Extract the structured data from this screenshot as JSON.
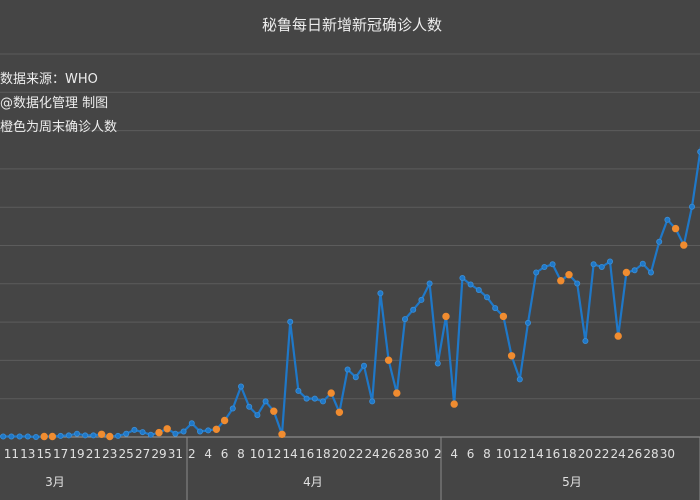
{
  "chart_data": {
    "type": "line",
    "title": "秘鲁每日新增新冠确诊人数",
    "annotations": [
      "数据来源：WHO",
      "@数据化管理  制图",
      "橙色为周末确诊人数"
    ],
    "xlabel": "",
    "ylabel": "",
    "x_start": "2020-03-09",
    "x_tick_labels": [
      "11",
      "13",
      "15",
      "17",
      "19",
      "21",
      "23",
      "25",
      "27",
      "29",
      "31",
      "2",
      "4",
      "6",
      "8",
      "10",
      "12",
      "14",
      "16",
      "18",
      "20",
      "22",
      "24",
      "26",
      "28",
      "30",
      "2",
      "4",
      "6",
      "8",
      "10",
      "12",
      "14",
      "16",
      "18",
      "20",
      "22",
      "24",
      "26",
      "28",
      "30"
    ],
    "months": [
      "3月",
      "4月",
      "5月"
    ],
    "grid": true,
    "series": [
      {
        "name": "",
        "color": "#1f78c8",
        "weekend_color": "#f08c30",
        "values": [
          2,
          1,
          1,
          1,
          1,
          0,
          1,
          1,
          2,
          3,
          6,
          3,
          3,
          5,
          1,
          2,
          6,
          13,
          9,
          4,
          8,
          15,
          6,
          10,
          25,
          10,
          12,
          14,
          30,
          52,
          92,
          55,
          40,
          65,
          47,
          5,
          210,
          84,
          70,
          70,
          65,
          80,
          45,
          123,
          109,
          130,
          65,
          262,
          140,
          80,
          215,
          232,
          250,
          280,
          134,
          220,
          60,
          290,
          278,
          268,
          255,
          235,
          220,
          148,
          105,
          208,
          300,
          310,
          315,
          285,
          296,
          280,
          175,
          315,
          310,
          320,
          184,
          300,
          304,
          316,
          300,
          356,
          396,
          380,
          350,
          420,
          520,
          620
        ]
      }
    ],
    "weekend_indices": [
      6,
      7,
      13,
      14,
      20,
      21,
      27,
      28,
      34,
      35,
      41,
      42,
      48,
      49,
      55,
      56,
      62,
      63,
      69,
      70,
      76,
      77,
      83,
      84
    ]
  }
}
